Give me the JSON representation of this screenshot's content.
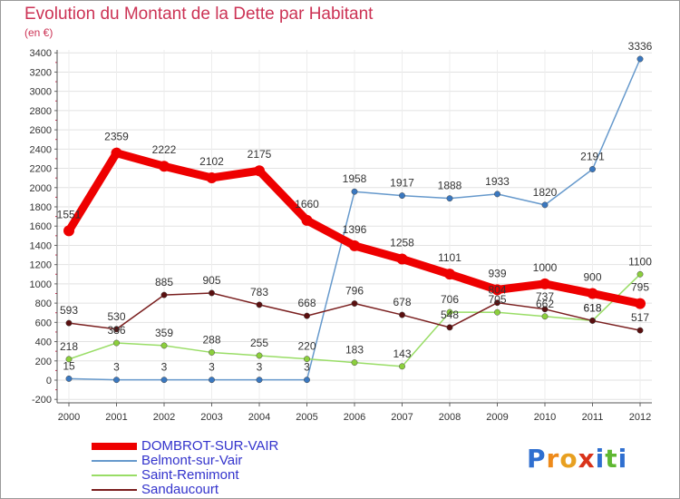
{
  "title": "Evolution du Montant de la Dette par Habitant",
  "unit_label": "(en €)",
  "brand": {
    "letters": [
      "P",
      "r",
      "o",
      "x",
      "i",
      "t",
      "i"
    ],
    "colors": [
      "#2f6fd0",
      "#ee8a1a",
      "#e8a020",
      "#d9331a",
      "#2f6fd0",
      "#5fb832",
      "#2f6fd0"
    ]
  },
  "chart_data": {
    "type": "line",
    "x": [
      "2000",
      "2001",
      "2002",
      "2003",
      "2004",
      "2005",
      "2006",
      "2007",
      "2008",
      "2009",
      "2010",
      "2011",
      "2012"
    ],
    "ylim": [
      -200,
      3400
    ],
    "yticks": [
      -200,
      0,
      200,
      400,
      600,
      800,
      1000,
      1200,
      1400,
      1600,
      1800,
      2000,
      2200,
      2400,
      2600,
      2800,
      3000,
      3200,
      3400
    ],
    "grid": true,
    "legend_position": "bottom-left",
    "series": [
      {
        "name": "DOMBROT-SUR-VAIR",
        "color": "#ee0000",
        "values": [
          1551,
          2359,
          2222,
          2102,
          2175,
          1660,
          1396,
          1258,
          1101,
          939,
          1000,
          900,
          795
        ],
        "labels": [
          "1551",
          "2359",
          "2222",
          "2102",
          "2175",
          "1660",
          "1396",
          "1258",
          "1101",
          "939",
          "1000",
          "900",
          "795"
        ]
      },
      {
        "name": "Belmont-sur-Vair",
        "color": "#6699cc",
        "values": [
          15,
          3,
          3,
          3,
          3,
          3,
          1958,
          1917,
          1888,
          1933,
          1820,
          2191,
          3336
        ],
        "labels": [
          "15",
          "3",
          "3",
          "3",
          "3",
          "3",
          "1958",
          "1917",
          "1888",
          "1933",
          "1820",
          "2191",
          "3336"
        ]
      },
      {
        "name": "Saint-Remimont",
        "color": "#99dd66",
        "values": [
          218,
          386,
          359,
          288,
          255,
          220,
          183,
          143,
          706,
          705,
          662,
          618,
          1100
        ],
        "labels": [
          "218",
          "386",
          "359",
          "288",
          "255",
          "220",
          "183",
          "143",
          "706",
          "705",
          "662",
          "618",
          "1100"
        ]
      },
      {
        "name": "Sandaucourt",
        "color": "#7a1f1f",
        "values": [
          593,
          530,
          885,
          905,
          783,
          668,
          796,
          678,
          548,
          804,
          737,
          618,
          517
        ],
        "labels": [
          "593",
          "530",
          "885",
          "905",
          "783",
          "668",
          "796",
          "678",
          "548",
          "804",
          "737",
          "618",
          "517"
        ]
      }
    ]
  }
}
